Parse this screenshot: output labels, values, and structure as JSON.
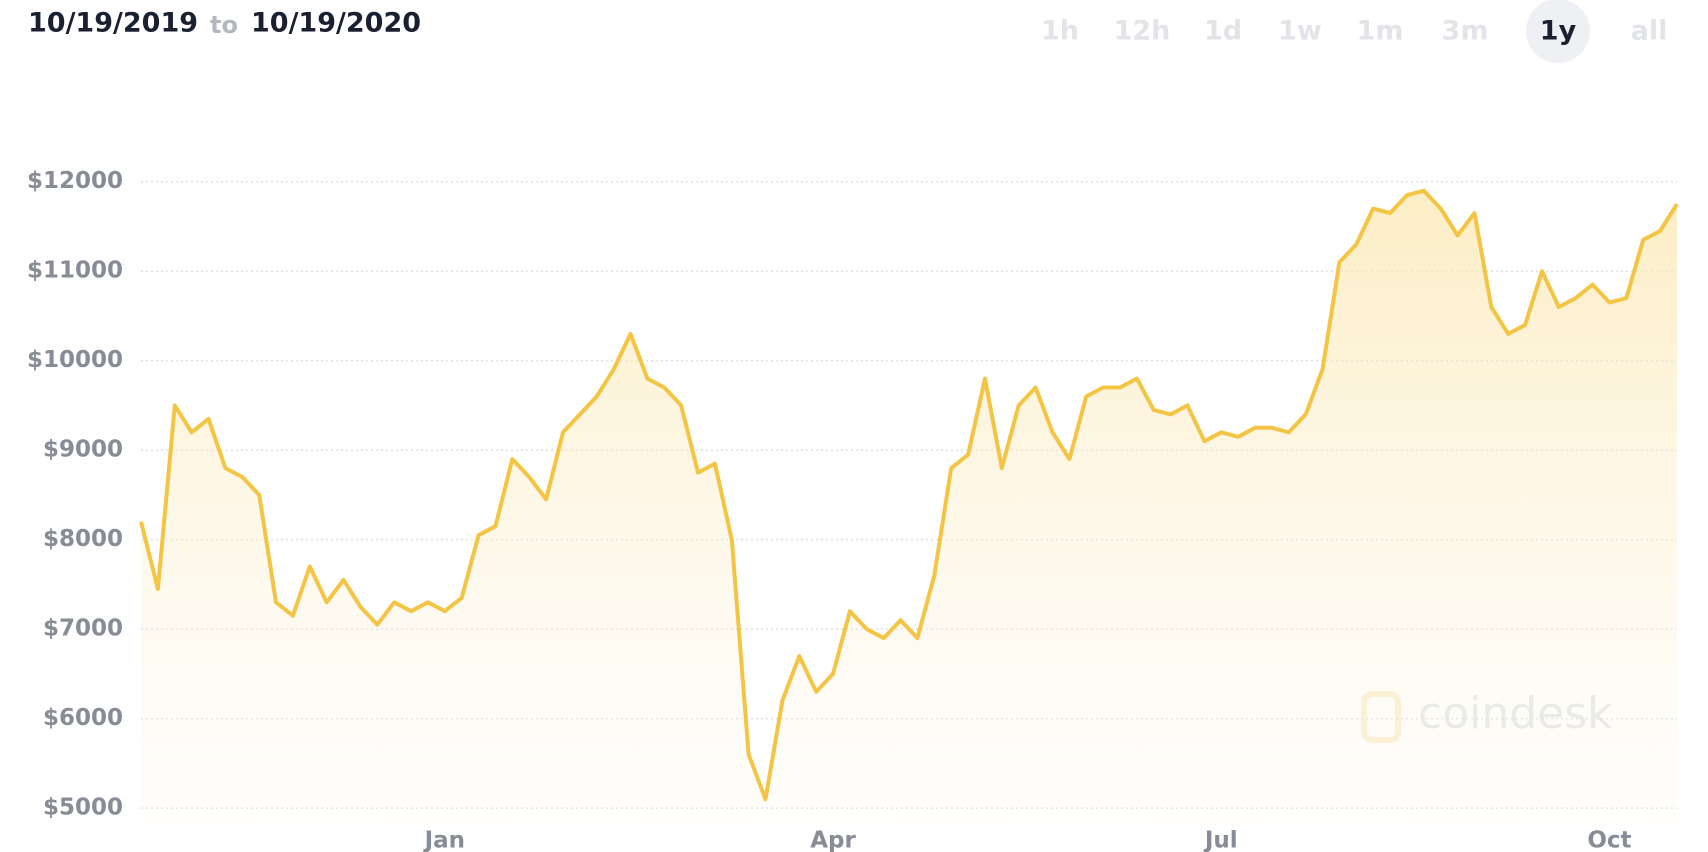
{
  "header": {
    "from": "10/19/2019",
    "to": "to",
    "until": "10/19/2020"
  },
  "range_buttons": {
    "labels": [
      "1h",
      "12h",
      "1d",
      "1w",
      "1m",
      "3m",
      "1y",
      "all"
    ],
    "selected": "1y"
  },
  "watermark": "coindesk",
  "chart_data": {
    "type": "line",
    "color": "#f4c544",
    "grid": true,
    "fill": true,
    "categories": [
      null,
      null,
      null,
      null,
      null,
      null,
      null,
      null,
      null,
      null,
      null,
      null,
      null,
      null,
      null,
      null,
      null,
      null,
      "Jan",
      null,
      null,
      null,
      null,
      null,
      null,
      null,
      null,
      null,
      null,
      null,
      null,
      null,
      null,
      null,
      null,
      null,
      null,
      null,
      null,
      null,
      null,
      "Apr",
      null,
      null,
      null,
      null,
      null,
      null,
      null,
      null,
      null,
      null,
      null,
      null,
      null,
      null,
      null,
      null,
      null,
      null,
      null,
      null,
      null,
      null,
      "Jul",
      null,
      null,
      null,
      null,
      null,
      null,
      null,
      null,
      null,
      null,
      null,
      null,
      null,
      null,
      null,
      null,
      null,
      null,
      null,
      null,
      null,
      null,
      "Oct",
      null,
      null,
      null,
      null
    ],
    "values": [
      8200,
      7450,
      9500,
      9200,
      9350,
      8800,
      8700,
      8500,
      7300,
      7150,
      7700,
      7300,
      7550,
      7250,
      7050,
      7300,
      7200,
      7300,
      7200,
      7350,
      8050,
      8150,
      8900,
      8700,
      8450,
      9200,
      9400,
      9600,
      9900,
      10300,
      9800,
      9700,
      9500,
      8750,
      8850,
      8000,
      5600,
      5100,
      6200,
      6700,
      6300,
      6500,
      7200,
      7000,
      6900,
      7100,
      6900,
      7600,
      8800,
      8950,
      9800,
      8800,
      9500,
      9700,
      9200,
      8900,
      9600,
      9700,
      9700,
      9800,
      9450,
      9400,
      9500,
      9100,
      9200,
      9150,
      9250,
      9250,
      9200,
      9400,
      9900,
      11100,
      11300,
      11700,
      11650,
      11850,
      11900,
      11700,
      11400,
      11650,
      10600,
      10300,
      10400,
      11000,
      10600,
      10700,
      10850,
      10650,
      10700,
      11350,
      11450,
      11750
    ],
    "ylim": [
      4800,
      12500
    ],
    "yticks": [
      {
        "value": 5000,
        "label": "$5000"
      },
      {
        "value": 6000,
        "label": "$6000"
      },
      {
        "value": 7000,
        "label": "$7000"
      },
      {
        "value": 8000,
        "label": "$8000"
      },
      {
        "value": 9000,
        "label": "$9000"
      },
      {
        "value": 10000,
        "label": "$10000"
      },
      {
        "value": 11000,
        "label": "$11000"
      },
      {
        "value": 12000,
        "label": "$12000"
      }
    ]
  }
}
